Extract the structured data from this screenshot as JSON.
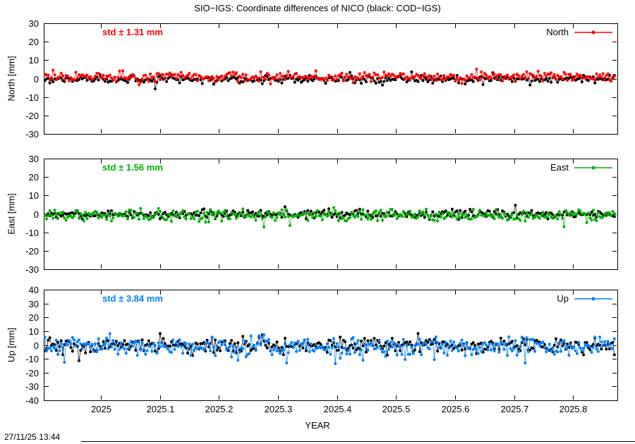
{
  "title": "SIO−IGS: Coordinate differences of NICO (black: COD−IGS)",
  "timestamp": "27/11/25 13:44",
  "x_axis": {
    "label": "YEAR",
    "lim": [
      2024.903,
      2025.875
    ],
    "ticks": [
      2025,
      2025.1,
      2025.2,
      2025.3,
      2025.4,
      2025.5,
      2025.6,
      2025.7,
      2025.8
    ],
    "tick_labels": [
      "2025",
      "2025.1",
      "2025.2",
      "2025.3",
      "2025.4",
      "2025.5",
      "2025.6",
      "2025.7",
      "2025.8"
    ]
  },
  "chart_data": [
    {
      "type": "scatter",
      "panel": "North",
      "ylabel": "North [mm]",
      "ylim": [
        -30,
        30
      ],
      "ytick_step": 10,
      "std_label": "std ± 1.31 mm",
      "legend": "North",
      "accent_color": "#ff0000",
      "x_start": 2024.905,
      "x_end": 2025.87,
      "n_points": 352,
      "series": [
        {
          "name": "COD−IGS",
          "color": "#000000",
          "mean_mm": -0.4,
          "std_mm": 1.0
        },
        {
          "name": "SIO−IGS",
          "color": "#ff0000",
          "mean_mm": 0.9,
          "std_mm": 1.31
        }
      ]
    },
    {
      "type": "scatter",
      "panel": "East",
      "ylabel": "East [mm]",
      "ylim": [
        -30,
        30
      ],
      "ytick_step": 10,
      "std_label": "std ± 1.56 mm",
      "legend": "East",
      "accent_color": "#00b000",
      "x_start": 2024.905,
      "x_end": 2025.87,
      "n_points": 352,
      "series": [
        {
          "name": "COD−IGS",
          "color": "#000000",
          "mean_mm": -0.2,
          "std_mm": 1.1
        },
        {
          "name": "SIO−IGS",
          "color": "#00b000",
          "mean_mm": -0.9,
          "std_mm": 1.56
        }
      ]
    },
    {
      "type": "scatter",
      "panel": "Up",
      "ylabel": "Up [mm]",
      "ylim": [
        -40,
        40
      ],
      "ytick_step": 10,
      "std_label": "std ± 3.84 mm",
      "legend": "Up",
      "accent_color": "#0080ff",
      "x_start": 2024.905,
      "x_end": 2025.87,
      "n_points": 352,
      "series": [
        {
          "name": "COD−IGS",
          "color": "#000000",
          "mean_mm": -0.3,
          "std_mm": 2.9
        },
        {
          "name": "SIO−IGS",
          "color": "#0080ff",
          "mean_mm": -1.5,
          "std_mm": 3.84
        }
      ]
    }
  ]
}
